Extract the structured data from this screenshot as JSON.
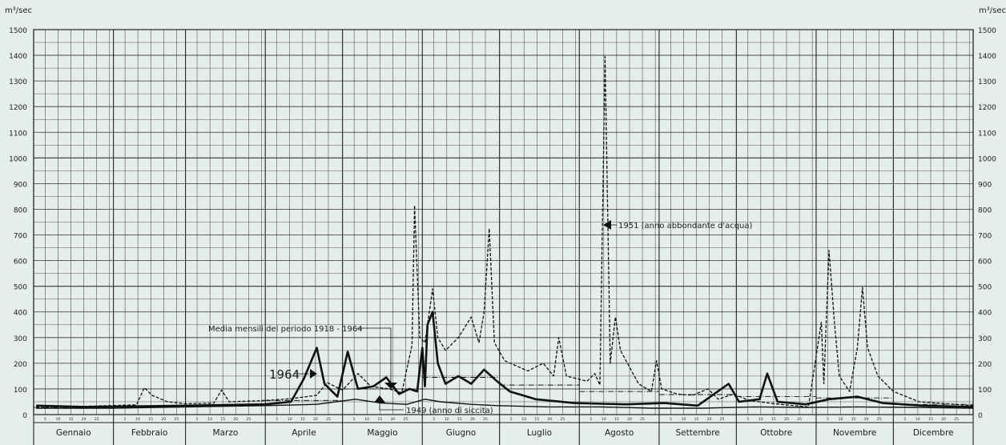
{
  "chart_data": {
    "type": "line",
    "unit_left": "m³/sec",
    "unit_right": "m³/sec",
    "ylim": [
      0,
      1500
    ],
    "y_ticks": [
      0,
      100,
      200,
      300,
      400,
      500,
      600,
      700,
      800,
      900,
      1000,
      1100,
      1200,
      1300,
      1400,
      1500
    ],
    "months": [
      "Gennaio",
      "Febbraio",
      "Marzo",
      "Aprile",
      "Maggio",
      "Giugno",
      "Luglio",
      "Agosto",
      "Settembre",
      "Ottobre",
      "Novembre",
      "Dicembre"
    ],
    "day_ticks": [
      "5",
      "10",
      "15",
      "20",
      "25"
    ],
    "x_unit": "day of year",
    "annotations": {
      "media": "Media mensili del periodo 1918 - 1964",
      "y1964": "1964",
      "y1949": "1949 (anno di siccita)",
      "y1951": "1951 (anno abbondante d'acqua)"
    },
    "series": [
      {
        "name": "1951 (anno abbondante d'acqua)",
        "style": "dashed",
        "points": [
          [
            1,
            30
          ],
          [
            20,
            32
          ],
          [
            40,
            38
          ],
          [
            43,
            105
          ],
          [
            46,
            75
          ],
          [
            52,
            50
          ],
          [
            59,
            42
          ],
          [
            70,
            45
          ],
          [
            73,
            95
          ],
          [
            76,
            50
          ],
          [
            90,
            55
          ],
          [
            100,
            62
          ],
          [
            110,
            75
          ],
          [
            114,
            125
          ],
          [
            120,
            95
          ],
          [
            126,
            160
          ],
          [
            131,
            110
          ],
          [
            138,
            100
          ],
          [
            143,
            85
          ],
          [
            147,
            270
          ],
          [
            148,
            815
          ],
          [
            150,
            300
          ],
          [
            152,
            280
          ],
          [
            155,
            490
          ],
          [
            157,
            300
          ],
          [
            160,
            250
          ],
          [
            165,
            300
          ],
          [
            170,
            380
          ],
          [
            173,
            280
          ],
          [
            175,
            400
          ],
          [
            177,
            725
          ],
          [
            179,
            280
          ],
          [
            183,
            210
          ],
          [
            192,
            170
          ],
          [
            198,
            200
          ],
          [
            202,
            150
          ],
          [
            204,
            300
          ],
          [
            207,
            150
          ],
          [
            215,
            130
          ],
          [
            218,
            160
          ],
          [
            220,
            115
          ],
          [
            222,
            1395
          ],
          [
            224,
            200
          ],
          [
            226,
            380
          ],
          [
            228,
            250
          ],
          [
            235,
            120
          ],
          [
            240,
            90
          ],
          [
            242,
            210
          ],
          [
            244,
            100
          ],
          [
            250,
            80
          ],
          [
            256,
            75
          ],
          [
            262,
            100
          ],
          [
            266,
            60
          ],
          [
            272,
            80
          ],
          [
            278,
            55
          ],
          [
            290,
            40
          ],
          [
            301,
            30
          ],
          [
            306,
            360
          ],
          [
            307,
            120
          ],
          [
            309,
            640
          ],
          [
            311,
            370
          ],
          [
            313,
            150
          ],
          [
            317,
            90
          ],
          [
            320,
            260
          ],
          [
            322,
            495
          ],
          [
            324,
            260
          ],
          [
            328,
            150
          ],
          [
            334,
            90
          ],
          [
            344,
            50
          ],
          [
            365,
            35
          ]
        ]
      },
      {
        "name": "1964",
        "style": "solid-bold",
        "points": [
          [
            1,
            35
          ],
          [
            20,
            30
          ],
          [
            40,
            32
          ],
          [
            60,
            35
          ],
          [
            90,
            40
          ],
          [
            100,
            50
          ],
          [
            105,
            140
          ],
          [
            110,
            260
          ],
          [
            113,
            120
          ],
          [
            118,
            70
          ],
          [
            122,
            245
          ],
          [
            126,
            100
          ],
          [
            132,
            110
          ],
          [
            137,
            145
          ],
          [
            142,
            80
          ],
          [
            146,
            100
          ],
          [
            149,
            90
          ],
          [
            151,
            260
          ],
          [
            152,
            110
          ],
          [
            153,
            350
          ],
          [
            155,
            400
          ],
          [
            157,
            200
          ],
          [
            160,
            120
          ],
          [
            165,
            150
          ],
          [
            170,
            120
          ],
          [
            175,
            175
          ],
          [
            180,
            130
          ],
          [
            185,
            90
          ],
          [
            195,
            60
          ],
          [
            210,
            45
          ],
          [
            230,
            40
          ],
          [
            245,
            45
          ],
          [
            258,
            35
          ],
          [
            270,
            120
          ],
          [
            274,
            50
          ],
          [
            282,
            60
          ],
          [
            285,
            160
          ],
          [
            289,
            50
          ],
          [
            300,
            40
          ],
          [
            309,
            60
          ],
          [
            320,
            70
          ],
          [
            330,
            45
          ],
          [
            345,
            35
          ],
          [
            365,
            30
          ]
        ]
      },
      {
        "name": "1949 (anno di siccita)",
        "style": "solid",
        "points": [
          [
            1,
            25
          ],
          [
            30,
            25
          ],
          [
            60,
            30
          ],
          [
            90,
            35
          ],
          [
            110,
            40
          ],
          [
            125,
            60
          ],
          [
            135,
            45
          ],
          [
            145,
            40
          ],
          [
            152,
            60
          ],
          [
            158,
            50
          ],
          [
            170,
            40
          ],
          [
            180,
            35
          ],
          [
            200,
            30
          ],
          [
            220,
            30
          ],
          [
            240,
            25
          ],
          [
            260,
            25
          ],
          [
            280,
            30
          ],
          [
            300,
            28
          ],
          [
            320,
            30
          ],
          [
            340,
            28
          ],
          [
            365,
            25
          ]
        ]
      },
      {
        "name": "Media mensili del periodo 1918 - 1964",
        "style": "monthly-steps",
        "monthly_values": [
          28,
          30,
          34,
          55,
          100,
          145,
          115,
          90,
          78,
          70,
          65,
          40
        ]
      }
    ]
  }
}
